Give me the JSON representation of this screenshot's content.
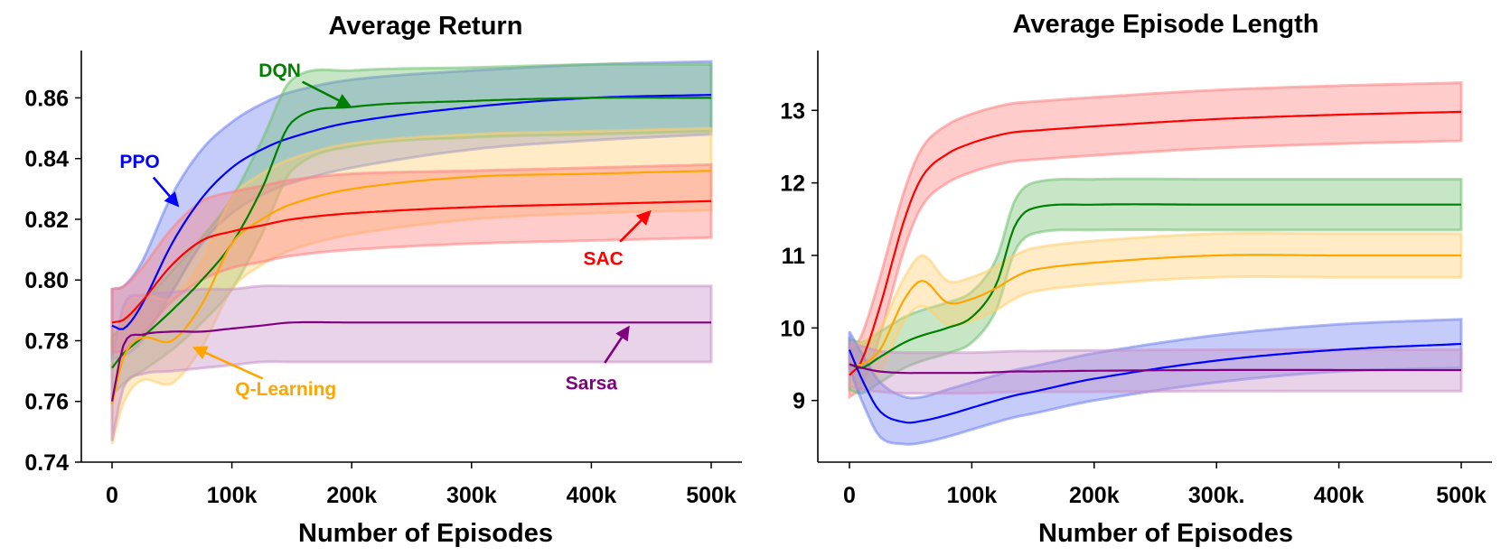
{
  "chart_data": [
    {
      "type": "line",
      "title": "Average Return",
      "xlabel": "Number of Episodes",
      "ylabel": "",
      "xlim": [
        0,
        500000
      ],
      "ylim": [
        0.74,
        0.875
      ],
      "xticks": [
        0,
        100000,
        200000,
        300000,
        400000,
        500000
      ],
      "xtick_labels": [
        "0",
        "100k",
        "200k",
        "300k",
        "400k",
        "500k"
      ],
      "yticks": [
        0.74,
        0.76,
        0.78,
        0.8,
        0.82,
        0.84,
        0.86
      ],
      "ytick_labels": [
        "0.74",
        "0.76",
        "0.78",
        "0.80",
        "0.82",
        "0.84",
        "0.86"
      ],
      "grid": false,
      "x": [
        0,
        10000,
        25000,
        50000,
        75000,
        100000,
        125000,
        150000,
        200000,
        300000,
        400000,
        500000
      ],
      "series": [
        {
          "name": "PPO",
          "color": "#0000ff",
          "band_color": "#6f7ff0",
          "values": [
            0.785,
            0.784,
            0.792,
            0.812,
            0.827,
            0.837,
            0.843,
            0.847,
            0.852,
            0.857,
            0.86,
            0.861
          ],
          "lower": [
            0.774,
            0.775,
            0.78,
            0.796,
            0.812,
            0.822,
            0.828,
            0.832,
            0.837,
            0.843,
            0.846,
            0.848
          ],
          "upper": [
            0.797,
            0.798,
            0.806,
            0.828,
            0.843,
            0.852,
            0.858,
            0.862,
            0.866,
            0.869,
            0.871,
            0.872
          ]
        },
        {
          "name": "DQN",
          "color": "#008000",
          "band_color": "#70c070",
          "values": [
            0.771,
            0.776,
            0.781,
            0.79,
            0.8,
            0.812,
            0.83,
            0.852,
            0.857,
            0.859,
            0.86,
            0.86
          ],
          "lower": [
            0.762,
            0.766,
            0.77,
            0.777,
            0.786,
            0.797,
            0.815,
            0.836,
            0.844,
            0.847,
            0.848,
            0.849
          ],
          "upper": [
            0.781,
            0.786,
            0.792,
            0.803,
            0.814,
            0.827,
            0.846,
            0.866,
            0.869,
            0.87,
            0.871,
            0.871
          ]
        },
        {
          "name": "Q-Learning",
          "color": "#ffa500",
          "band_color": "#ffd070",
          "values": [
            0.759,
            0.775,
            0.781,
            0.78,
            0.792,
            0.812,
            0.82,
            0.825,
            0.83,
            0.834,
            0.835,
            0.836
          ],
          "lower": [
            0.746,
            0.76,
            0.767,
            0.766,
            0.778,
            0.797,
            0.805,
            0.81,
            0.815,
            0.82,
            0.822,
            0.823
          ],
          "upper": [
            0.772,
            0.79,
            0.795,
            0.794,
            0.806,
            0.827,
            0.835,
            0.84,
            0.845,
            0.848,
            0.849,
            0.85
          ]
        },
        {
          "name": "SAC",
          "color": "#ff0000",
          "band_color": "#ff8080",
          "values": [
            0.786,
            0.787,
            0.793,
            0.805,
            0.813,
            0.816,
            0.818,
            0.82,
            0.822,
            0.824,
            0.825,
            0.826
          ],
          "lower": [
            0.776,
            0.777,
            0.782,
            0.793,
            0.8,
            0.804,
            0.806,
            0.808,
            0.81,
            0.812,
            0.813,
            0.814
          ],
          "upper": [
            0.797,
            0.798,
            0.804,
            0.817,
            0.826,
            0.829,
            0.831,
            0.833,
            0.835,
            0.836,
            0.837,
            0.838
          ]
        },
        {
          "name": "Sarsa",
          "color": "#800080",
          "band_color": "#c890c8",
          "values": [
            0.76,
            0.779,
            0.782,
            0.783,
            0.783,
            0.784,
            0.785,
            0.786,
            0.786,
            0.786,
            0.786,
            0.786
          ],
          "lower": [
            0.747,
            0.765,
            0.769,
            0.77,
            0.771,
            0.772,
            0.773,
            0.773,
            0.773,
            0.773,
            0.773,
            0.773
          ],
          "upper": [
            0.773,
            0.792,
            0.795,
            0.796,
            0.797,
            0.797,
            0.798,
            0.798,
            0.798,
            0.798,
            0.798,
            0.798
          ]
        }
      ],
      "annotations": [
        {
          "text": "PPO",
          "color": "#0000ff",
          "arrow_to": [
            56000,
            0.824
          ],
          "text_at": [
            23000,
            0.837
          ]
        },
        {
          "text": "DQN",
          "color": "#008000",
          "arrow_to": [
            200000,
            0.857
          ],
          "text_at": [
            140000,
            0.867
          ]
        },
        {
          "text": "Q-Learning",
          "color": "#ffa500",
          "arrow_to": [
            67000,
            0.778
          ],
          "text_at": [
            145000,
            0.762
          ]
        },
        {
          "text": "SAC",
          "color": "#ff0000",
          "arrow_to": [
            450000,
            0.823
          ],
          "text_at": [
            410000,
            0.805
          ]
        },
        {
          "text": "Sarsa",
          "color": "#800080",
          "arrow_to": [
            432000,
            0.785
          ],
          "text_at": [
            400000,
            0.764
          ]
        }
      ]
    },
    {
      "type": "line",
      "title": "Average Episode Length",
      "xlabel": "Number of Episodes",
      "ylabel": "",
      "xlim": [
        0,
        500000
      ],
      "ylim": [
        8.15,
        13.8
      ],
      "xticks": [
        0,
        100000,
        200000,
        300000,
        400000,
        500000
      ],
      "xtick_labels": [
        "0",
        "100k",
        "200k",
        "300k.",
        "400k",
        "500k"
      ],
      "yticks": [
        9,
        10,
        11,
        12,
        13
      ],
      "ytick_labels": [
        "9",
        "10",
        "11",
        "12",
        "13"
      ],
      "grid": false,
      "x": [
        0,
        10000,
        25000,
        45000,
        60000,
        80000,
        100000,
        120000,
        135000,
        150000,
        200000,
        300000,
        400000,
        500000
      ],
      "series": [
        {
          "name": "SAC",
          "color": "#ff0000",
          "band_color": "#ff8080",
          "values": [
            9.35,
            9.55,
            10.3,
            11.5,
            12.1,
            12.4,
            12.55,
            12.65,
            12.7,
            12.72,
            12.78,
            12.88,
            12.94,
            12.98
          ],
          "lower": [
            9.05,
            9.2,
            9.9,
            11.1,
            11.7,
            12.0,
            12.15,
            12.25,
            12.3,
            12.32,
            12.38,
            12.48,
            12.54,
            12.58
          ],
          "upper": [
            9.65,
            9.9,
            10.7,
            11.9,
            12.5,
            12.8,
            12.95,
            13.05,
            13.1,
            13.12,
            13.18,
            13.28,
            13.34,
            13.38
          ]
        },
        {
          "name": "DQN",
          "color": "#008000",
          "band_color": "#70c070",
          "values": [
            9.5,
            9.45,
            9.6,
            9.8,
            9.9,
            10.0,
            10.15,
            10.6,
            11.4,
            11.65,
            11.7,
            11.7,
            11.7,
            11.7
          ],
          "lower": [
            9.15,
            9.1,
            9.25,
            9.45,
            9.55,
            9.65,
            9.8,
            10.25,
            11.05,
            11.3,
            11.35,
            11.35,
            11.35,
            11.35
          ],
          "upper": [
            9.85,
            9.8,
            9.95,
            10.15,
            10.25,
            10.35,
            10.5,
            10.95,
            11.75,
            12.0,
            12.05,
            12.05,
            12.05,
            12.05
          ]
        },
        {
          "name": "Q-Learning",
          "color": "#ffa500",
          "band_color": "#ffd070",
          "values": [
            9.5,
            9.5,
            9.7,
            10.4,
            10.65,
            10.35,
            10.4,
            10.55,
            10.7,
            10.8,
            10.9,
            11.0,
            11.0,
            11.0
          ],
          "lower": [
            9.2,
            9.2,
            9.4,
            10.1,
            10.3,
            10.05,
            10.1,
            10.25,
            10.4,
            10.5,
            10.6,
            10.7,
            10.7,
            10.7
          ],
          "upper": [
            9.8,
            9.8,
            10.0,
            10.7,
            11.0,
            10.65,
            10.7,
            10.85,
            11.0,
            11.1,
            11.2,
            11.3,
            11.3,
            11.3
          ]
        },
        {
          "name": "PPO",
          "color": "#0000ff",
          "band_color": "#6f7ff0",
          "values": [
            9.7,
            9.3,
            8.85,
            8.7,
            8.72,
            8.8,
            8.9,
            9.0,
            9.07,
            9.12,
            9.3,
            9.55,
            9.7,
            9.78
          ],
          "lower": [
            9.45,
            9.0,
            8.5,
            8.4,
            8.42,
            8.5,
            8.6,
            8.7,
            8.77,
            8.82,
            9.0,
            9.25,
            9.4,
            9.45
          ],
          "upper": [
            9.95,
            9.65,
            9.25,
            9.05,
            9.05,
            9.15,
            9.25,
            9.35,
            9.42,
            9.47,
            9.65,
            9.9,
            10.05,
            10.12
          ]
        },
        {
          "name": "Sarsa",
          "color": "#800080",
          "band_color": "#c890c8",
          "values": [
            9.5,
            9.45,
            9.4,
            9.38,
            9.38,
            9.38,
            9.38,
            9.39,
            9.4,
            9.4,
            9.41,
            9.42,
            9.42,
            9.42
          ],
          "lower": [
            9.2,
            9.15,
            9.12,
            9.1,
            9.1,
            9.1,
            9.1,
            9.11,
            9.12,
            9.12,
            9.12,
            9.13,
            9.13,
            9.13
          ],
          "upper": [
            9.8,
            9.75,
            9.68,
            9.66,
            9.66,
            9.66,
            9.66,
            9.67,
            9.68,
            9.68,
            9.69,
            9.7,
            9.7,
            9.7
          ]
        }
      ],
      "annotations": []
    }
  ]
}
